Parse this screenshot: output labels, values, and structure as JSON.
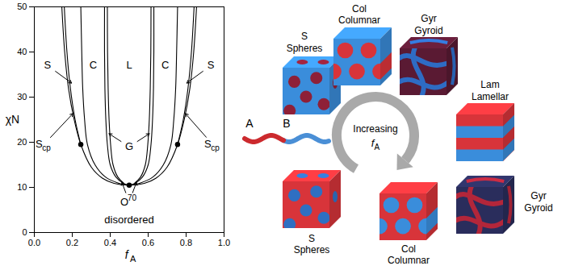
{
  "chart_data": {
    "type": "line",
    "x_label": {
      "text": "f",
      "sub": "A"
    },
    "y_label": "χN",
    "xlim": [
      0,
      1
    ],
    "xticks": [
      {
        "value": 0,
        "label": "0.0"
      },
      0.2,
      0.4,
      0.6,
      0.8,
      {
        "value": 1,
        "label": "1.0"
      }
    ],
    "ylim": [
      0,
      50
    ],
    "yticks": [
      0,
      10,
      20,
      30,
      40,
      50
    ],
    "color": "#000000",
    "series": [
      {
        "x": [
          0.145,
          0.16,
          0.18,
          0.21,
          0.245,
          0.3,
          0.36,
          0.42,
          0.5,
          0.58,
          0.64,
          0.7,
          0.755,
          0.79,
          0.82,
          0.84,
          0.855
        ],
        "values": [
          50,
          40,
          32,
          25,
          19.5,
          14.5,
          12,
          10.9,
          10.495,
          10.9,
          12,
          14.5,
          19.5,
          25,
          32,
          40,
          50
        ]
      },
      {
        "x": [
          0.158,
          0.172,
          0.19,
          0.215,
          0.245
        ],
        "values": [
          50,
          40,
          32,
          25,
          19.5
        ]
      },
      {
        "x": [
          0.755,
          0.785,
          0.81,
          0.828,
          0.842
        ],
        "values": [
          19.5,
          25,
          32,
          40,
          50
        ]
      },
      {
        "x": [
          0.245,
          0.25,
          0.255,
          0.265,
          0.28,
          0.32,
          0.375,
          0.44,
          0.5,
          0.56,
          0.625,
          0.68,
          0.72,
          0.735,
          0.745,
          0.75,
          0.755
        ],
        "values": [
          50,
          40,
          32,
          25,
          19.5,
          15,
          12.3,
          11,
          10.495,
          11,
          12.3,
          15,
          19.5,
          25,
          32,
          40,
          50
        ]
      },
      {
        "x": [
          0.37,
          0.37,
          0.372,
          0.377,
          0.385,
          0.4,
          0.43,
          0.47,
          0.5
        ],
        "values": [
          50,
          40,
          32,
          25,
          19.5,
          15,
          12.3,
          10.9,
          10.495
        ]
      },
      {
        "x": [
          0.5,
          0.53,
          0.57,
          0.6,
          0.615,
          0.623,
          0.628,
          0.63,
          0.63
        ],
        "values": [
          10.495,
          10.9,
          12.3,
          15,
          19.5,
          25,
          32,
          40,
          50
        ]
      },
      {
        "x": [
          0.385,
          0.386,
          0.389,
          0.394,
          0.402,
          0.415,
          0.44,
          0.47
        ],
        "values": [
          50,
          40,
          32,
          25,
          19.5,
          15,
          12.3,
          11
        ]
      },
      {
        "x": [
          0.53,
          0.56,
          0.585,
          0.598,
          0.606,
          0.611,
          0.614,
          0.615
        ],
        "values": [
          11,
          12.3,
          15,
          19.5,
          25,
          32,
          40,
          50
        ]
      }
    ],
    "points": {
      "x": [
        0.245,
        0.5,
        0.755
      ],
      "values": [
        19.5,
        10.495,
        19.5
      ]
    },
    "annotations": [
      {
        "text": "S",
        "x": 0.07,
        "y": 37,
        "arrow_to": [
          [
            0.2,
            33
          ]
        ]
      },
      {
        "text": "C",
        "x": 0.31,
        "y": 37
      },
      {
        "text": "L",
        "x": 0.5,
        "y": 37
      },
      {
        "text": "C",
        "x": 0.69,
        "y": 37
      },
      {
        "text": "S",
        "x": 0.93,
        "y": 37,
        "arrow_to": [
          [
            0.8,
            33
          ]
        ]
      },
      {
        "text": "S",
        "sub": "cp",
        "x": 0.05,
        "y": 19.5,
        "arrow_to": [
          [
            0.207,
            26.5
          ]
        ]
      },
      {
        "text": "S",
        "sub": "cp",
        "x": 0.94,
        "y": 19.5,
        "arrow_to": [
          [
            0.793,
            26.5
          ]
        ]
      },
      {
        "text": "G",
        "x": 0.5,
        "y": 19,
        "arrow_to": [
          [
            0.39,
            22
          ],
          [
            0.61,
            22
          ]
        ]
      },
      {
        "text": "O",
        "sup": "70",
        "x": 0.5,
        "y": 6.8,
        "arrow_to": [
          [
            0.46,
            11.3
          ],
          [
            0.54,
            11.3
          ]
        ]
      },
      {
        "text": "disordered",
        "x": 0.5,
        "y": 2.8
      }
    ]
  },
  "diagram": {
    "chain": [
      {
        "label": "A",
        "color": "#cc2a2e"
      },
      {
        "label": "B",
        "color": "#4a8fd6"
      }
    ],
    "arrow_label": {
      "text": "Increasing",
      "var": {
        "text": "f",
        "sub": "A"
      }
    },
    "phases": [
      {
        "abbr": "S",
        "name": "Spheres",
        "colors": [
          "#3a8ddb",
          "#8e2038"
        ]
      },
      {
        "abbr": "Col",
        "name": "Columnar",
        "colors": [
          "#3a8ddb",
          "#d8343a"
        ]
      },
      {
        "abbr": "Gyr",
        "name": "Gyroid",
        "colors": [
          "#5a1a33",
          "#2e6cc4"
        ]
      },
      {
        "abbr": "Lam",
        "name": "Lamellar",
        "colors": [
          "#d8343a",
          "#3a8ddb"
        ]
      },
      {
        "abbr": "Gyr",
        "name": "Gyroid",
        "colors": [
          "#2a2d5c",
          "#b3263a"
        ]
      },
      {
        "abbr": "Col",
        "name": "Columnar",
        "colors": [
          "#d8343a",
          "#3a8ddb"
        ]
      },
      {
        "abbr": "S",
        "name": "Spheres",
        "colors": [
          "#d8343a",
          "#2f6fc2"
        ]
      }
    ]
  }
}
